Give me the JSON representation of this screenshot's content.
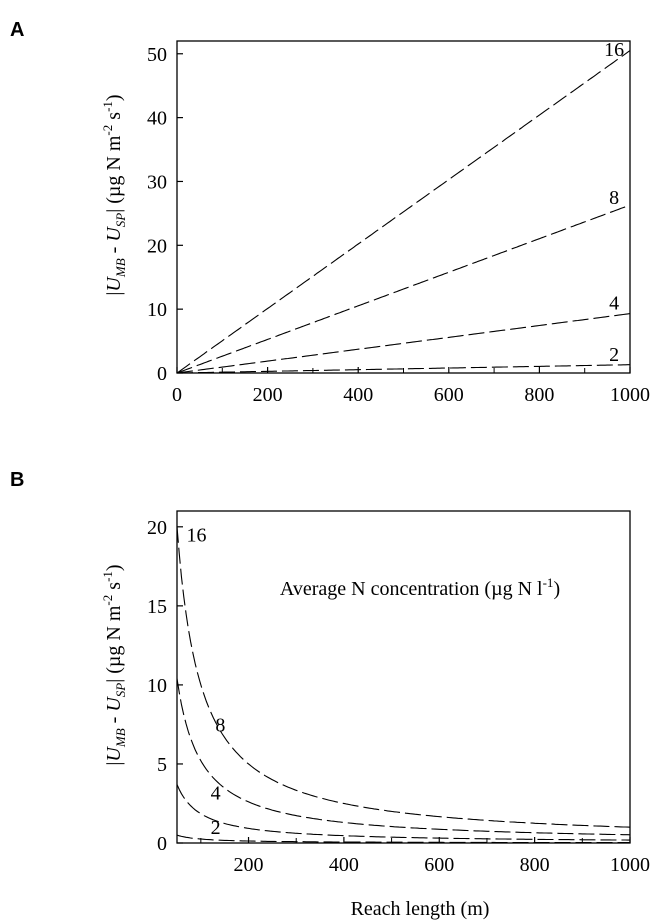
{
  "chart_data": [
    {
      "panel": "A",
      "type": "line",
      "xlabel": "Average N concentration (µg N l",
      "xlabel_sup": "-1",
      "xlabel_end": ")",
      "ylabel_parts": {
        "bar_open": "|",
        "u1": "U",
        "sub1": "MB",
        "minus": " - ",
        "u2": "U",
        "sub2": "SP",
        "bar_close": "|",
        "unit_a": " (µg N m",
        "sup_a": "-2",
        "unit_b": " s",
        "sup_b": "-1",
        "unit_c": ")"
      },
      "xlim": [
        0,
        1000
      ],
      "ylim": [
        0,
        52
      ],
      "xticks": [
        0,
        200,
        400,
        600,
        800,
        1000
      ],
      "yticks": [
        0,
        10,
        20,
        30,
        40,
        50
      ],
      "series": [
        {
          "label": "16",
          "slope": 0.0505
        },
        {
          "label": "8",
          "slope": 0.0263
        },
        {
          "label": "4",
          "slope": 0.0093
        },
        {
          "label": "2",
          "slope": 0.0013
        }
      ]
    },
    {
      "panel": "B",
      "type": "line",
      "xlabel": "Reach length (m)",
      "ylabel_parts": {
        "bar_open": "|",
        "u1": "U",
        "sub1": "MB",
        "minus": " - ",
        "u2": "U",
        "sub2": "SP",
        "bar_close": "|",
        "unit_a": " (µg N m",
        "sup_a": "-2",
        "unit_b": " s",
        "sup_b": "-1",
        "unit_c": ")"
      },
      "xlim": [
        50,
        1000
      ],
      "ylim": [
        0,
        21
      ],
      "xticks": [
        200,
        400,
        600,
        800,
        1000
      ],
      "yticks": [
        0,
        5,
        10,
        15,
        20
      ],
      "series": [
        {
          "label": "16",
          "k": 1000
        },
        {
          "label": "8",
          "k": 520
        },
        {
          "label": "4",
          "k": 185
        },
        {
          "label": "2",
          "k": 25
        }
      ]
    }
  ],
  "panel_letters": [
    "A",
    "B"
  ]
}
